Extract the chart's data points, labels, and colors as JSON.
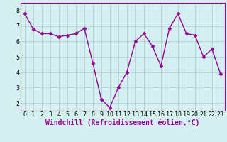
{
  "x": [
    0,
    1,
    2,
    3,
    4,
    5,
    6,
    7,
    8,
    9,
    10,
    11,
    12,
    13,
    14,
    15,
    16,
    17,
    18,
    19,
    20,
    21,
    22,
    23
  ],
  "y": [
    7.8,
    6.8,
    6.5,
    6.5,
    6.3,
    6.4,
    6.5,
    6.85,
    4.6,
    2.25,
    1.7,
    3.0,
    4.0,
    6.0,
    6.5,
    5.7,
    4.4,
    6.85,
    7.8,
    6.5,
    6.4,
    5.0,
    5.5,
    3.9
  ],
  "line_color": "#990099",
  "marker": "D",
  "marker_size": 2.5,
  "bg_color": "#d5f0f0",
  "grid_color": "#aacccc",
  "xlabel": "Windchill (Refroidissement éolien,°C)",
  "xlabel_color": "#990099",
  "xlabel_fontsize": 7,
  "yticks": [
    2,
    3,
    4,
    5,
    6,
    7,
    8
  ],
  "xticks": [
    0,
    1,
    2,
    3,
    4,
    5,
    6,
    7,
    8,
    9,
    10,
    11,
    12,
    13,
    14,
    15,
    16,
    17,
    18,
    19,
    20,
    21,
    22,
    23
  ],
  "ylim": [
    1.5,
    8.5
  ],
  "xlim": [
    -0.5,
    23.5
  ],
  "tick_fontsize": 6,
  "spine_color": "#990099",
  "linewidth": 1.0
}
